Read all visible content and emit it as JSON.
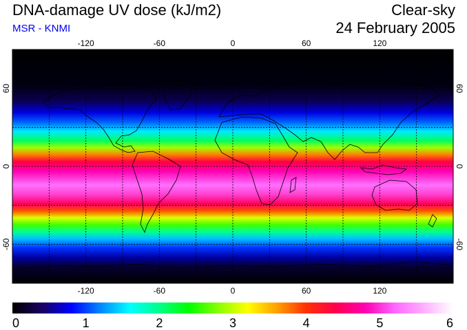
{
  "header": {
    "title": "DNA-damage UV dose (kJ/m2)",
    "source": "MSR - KNMI",
    "condition": "Clear-sky",
    "date": "24 February 2005"
  },
  "map": {
    "projection": "equirectangular",
    "lon_ticks": [
      -120,
      -60,
      0,
      60,
      120
    ],
    "lat_ticks": [
      60,
      0,
      -60
    ],
    "lat_ticks_right": [
      "60",
      "0",
      "-60"
    ],
    "lon_range": [
      -180,
      180
    ],
    "lat_range": [
      -90,
      90
    ],
    "gridlines": "dotted",
    "gridline_lons": [
      -150,
      -120,
      -90,
      -60,
      -30,
      0,
      30,
      60,
      90,
      120,
      150
    ],
    "gridline_lats": [
      60,
      30,
      0,
      -30,
      -60
    ]
  },
  "colorbar": {
    "labels": [
      "0",
      "1",
      "2",
      "3",
      "4",
      "5",
      "6"
    ],
    "min": 0,
    "max": 6,
    "colors": [
      "#000000",
      "#1a0060",
      "#0000ff",
      "#0088ff",
      "#00ffff",
      "#00ff88",
      "#00ff00",
      "#88ff00",
      "#ffff00",
      "#ffa000",
      "#ff3000",
      "#ff0050",
      "#ff00b0",
      "#ff66ff",
      "#ffb0ff",
      "#ffffff"
    ]
  }
}
